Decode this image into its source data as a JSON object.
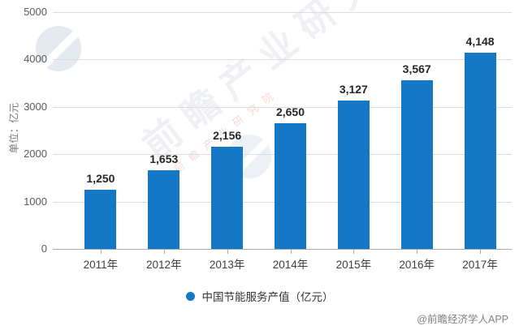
{
  "chart_data": {
    "type": "bar",
    "title": "",
    "ylabel": "单位：亿元",
    "categories": [
      "2011年",
      "2012年",
      "2013年",
      "2014年",
      "2015年",
      "2016年",
      "2017年"
    ],
    "values": [
      1250,
      1653,
      2156,
      2650,
      3127,
      3567,
      4148
    ],
    "value_labels": [
      "1,250",
      "1,653",
      "2,156",
      "2,650",
      "3,127",
      "3,567",
      "4,148"
    ],
    "ylim": [
      0,
      5000
    ],
    "yticks": [
      0,
      1000,
      2000,
      3000,
      4000,
      5000
    ],
    "grid": true,
    "legend": {
      "label": "中国节能服务产值（亿元）",
      "position": "bottom"
    },
    "bar_color": "#1478c6"
  },
  "watermark": {
    "text": "前瞻产业研究院"
  },
  "footer": {
    "attribution": "@前瞻经济学人APP"
  }
}
